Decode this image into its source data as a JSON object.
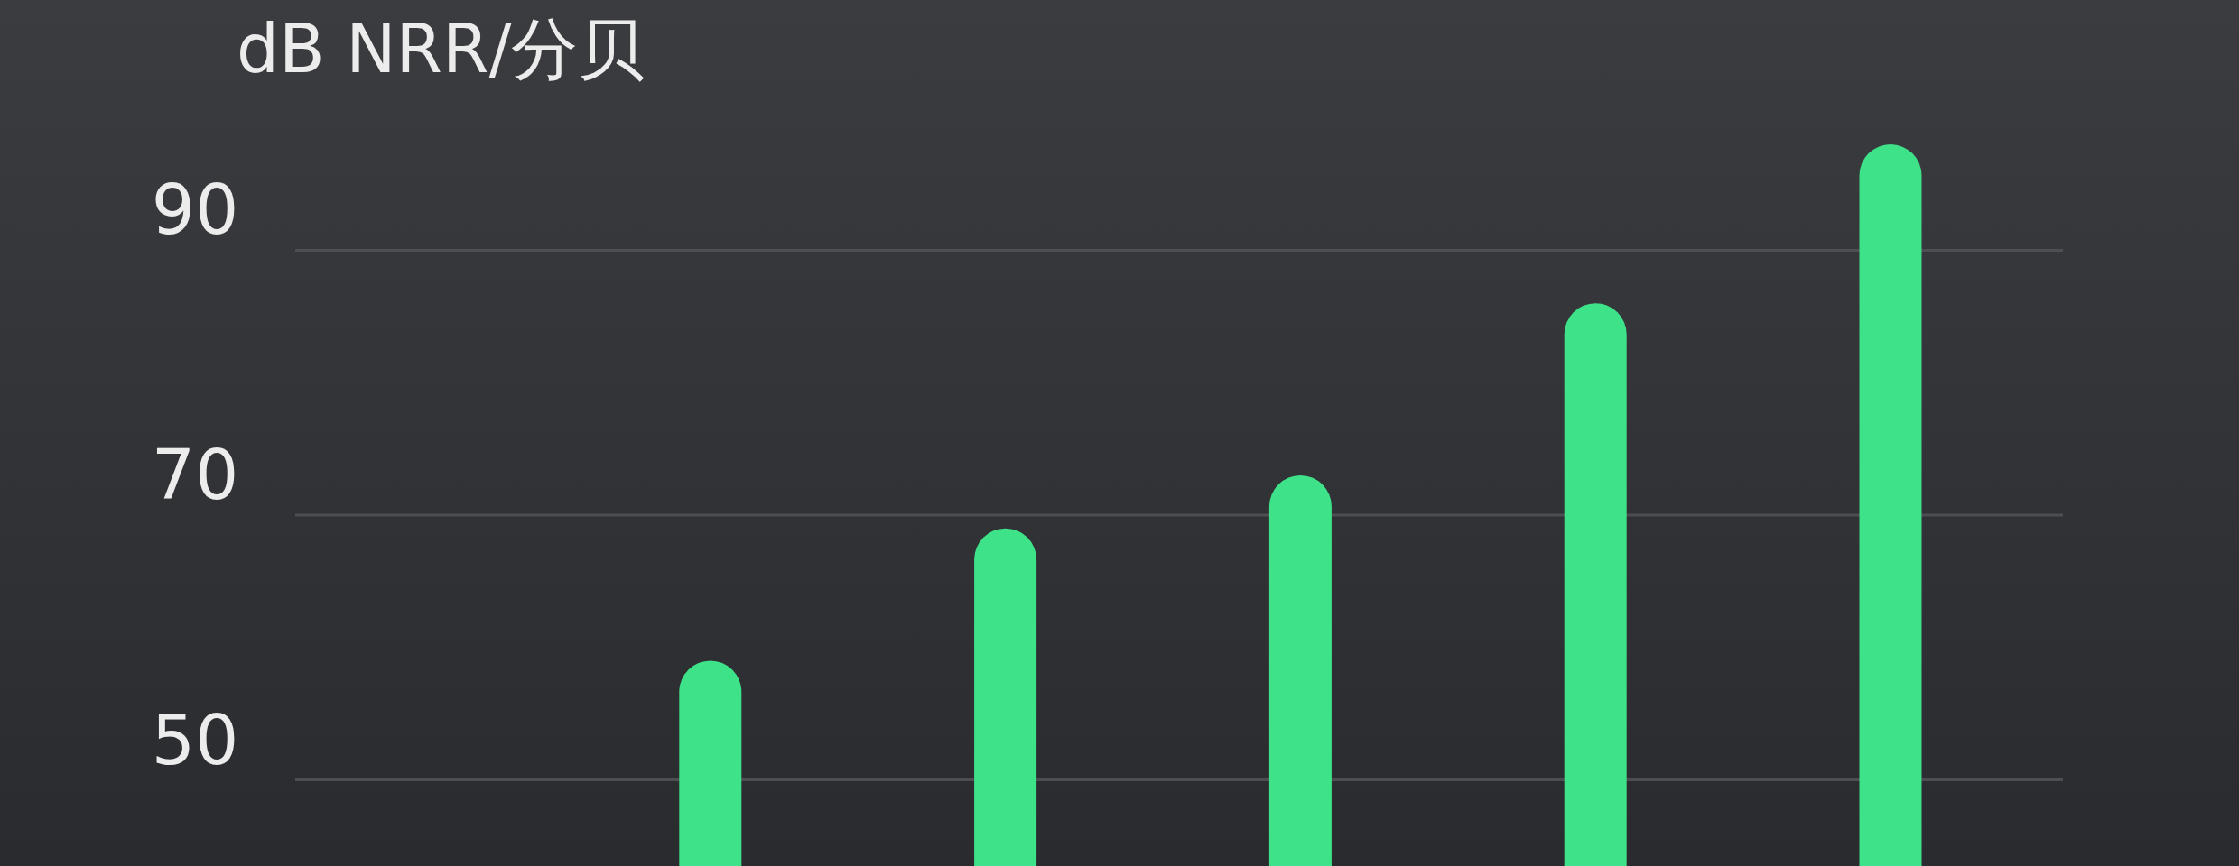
{
  "chart_data": {
    "type": "bar",
    "ylabel": "dB NRR/分贝",
    "categories": [
      null,
      null,
      null,
      null,
      null,
      null
    ],
    "values": [
      null,
      59,
      69,
      73,
      86,
      98
    ],
    "color": "#3ee288",
    "ylim": [
      43.5,
      108.9
    ],
    "yticks": [
      50,
      70,
      90
    ],
    "grid": "y"
  }
}
